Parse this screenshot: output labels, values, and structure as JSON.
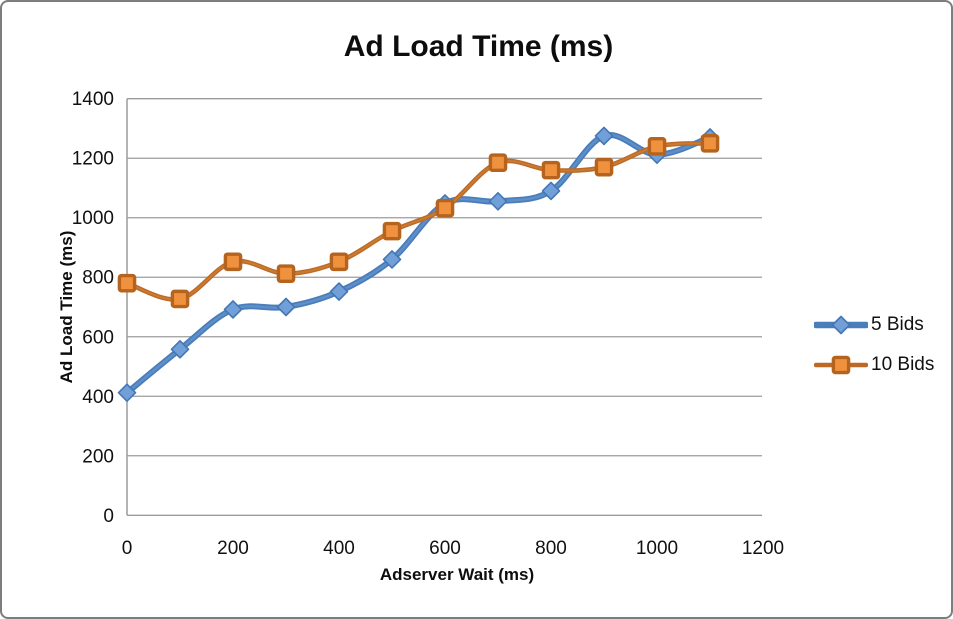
{
  "chart_data": {
    "type": "line",
    "title": "Ad Load Time (ms)",
    "xlabel": "Adserver Wait (ms)",
    "ylabel": "Ad Load Time (ms)",
    "x": [
      0,
      100,
      200,
      300,
      400,
      500,
      600,
      700,
      800,
      900,
      1000,
      1100
    ],
    "series": [
      {
        "name": "5 Bids",
        "marker": "diamond",
        "line_color": "#4a7ebb",
        "line_highlight": "#6f9cd4",
        "marker_fill": "#71a0d9",
        "marker_stroke": "#4576b5",
        "values": [
          412,
          558,
          692,
          700,
          752,
          860,
          1048,
          1055,
          1090,
          1275,
          1212,
          1270
        ]
      },
      {
        "name": "10 Bids",
        "marker": "square",
        "line_color": "#bc6a26",
        "line_highlight": "#d6873b",
        "marker_fill": "#f0913d",
        "marker_stroke": "#b4641e",
        "values": [
          780,
          727,
          852,
          812,
          852,
          955,
          1032,
          1185,
          1160,
          1170,
          1240,
          1250
        ]
      }
    ],
    "xlim": [
      0,
      1200
    ],
    "ylim": [
      0,
      1400
    ],
    "x_ticks": [
      0,
      200,
      400,
      600,
      800,
      1000,
      1200
    ],
    "y_ticks": [
      0,
      200,
      400,
      600,
      800,
      1000,
      1200,
      1400
    ],
    "grid": "horizontal",
    "legend_position": "right",
    "colors": {
      "background": "#ffffff",
      "frame_border": "#7d7d7d",
      "gridline": "#9b9b9b",
      "axis_line": "#9b9b9b",
      "text": "#111111"
    }
  }
}
